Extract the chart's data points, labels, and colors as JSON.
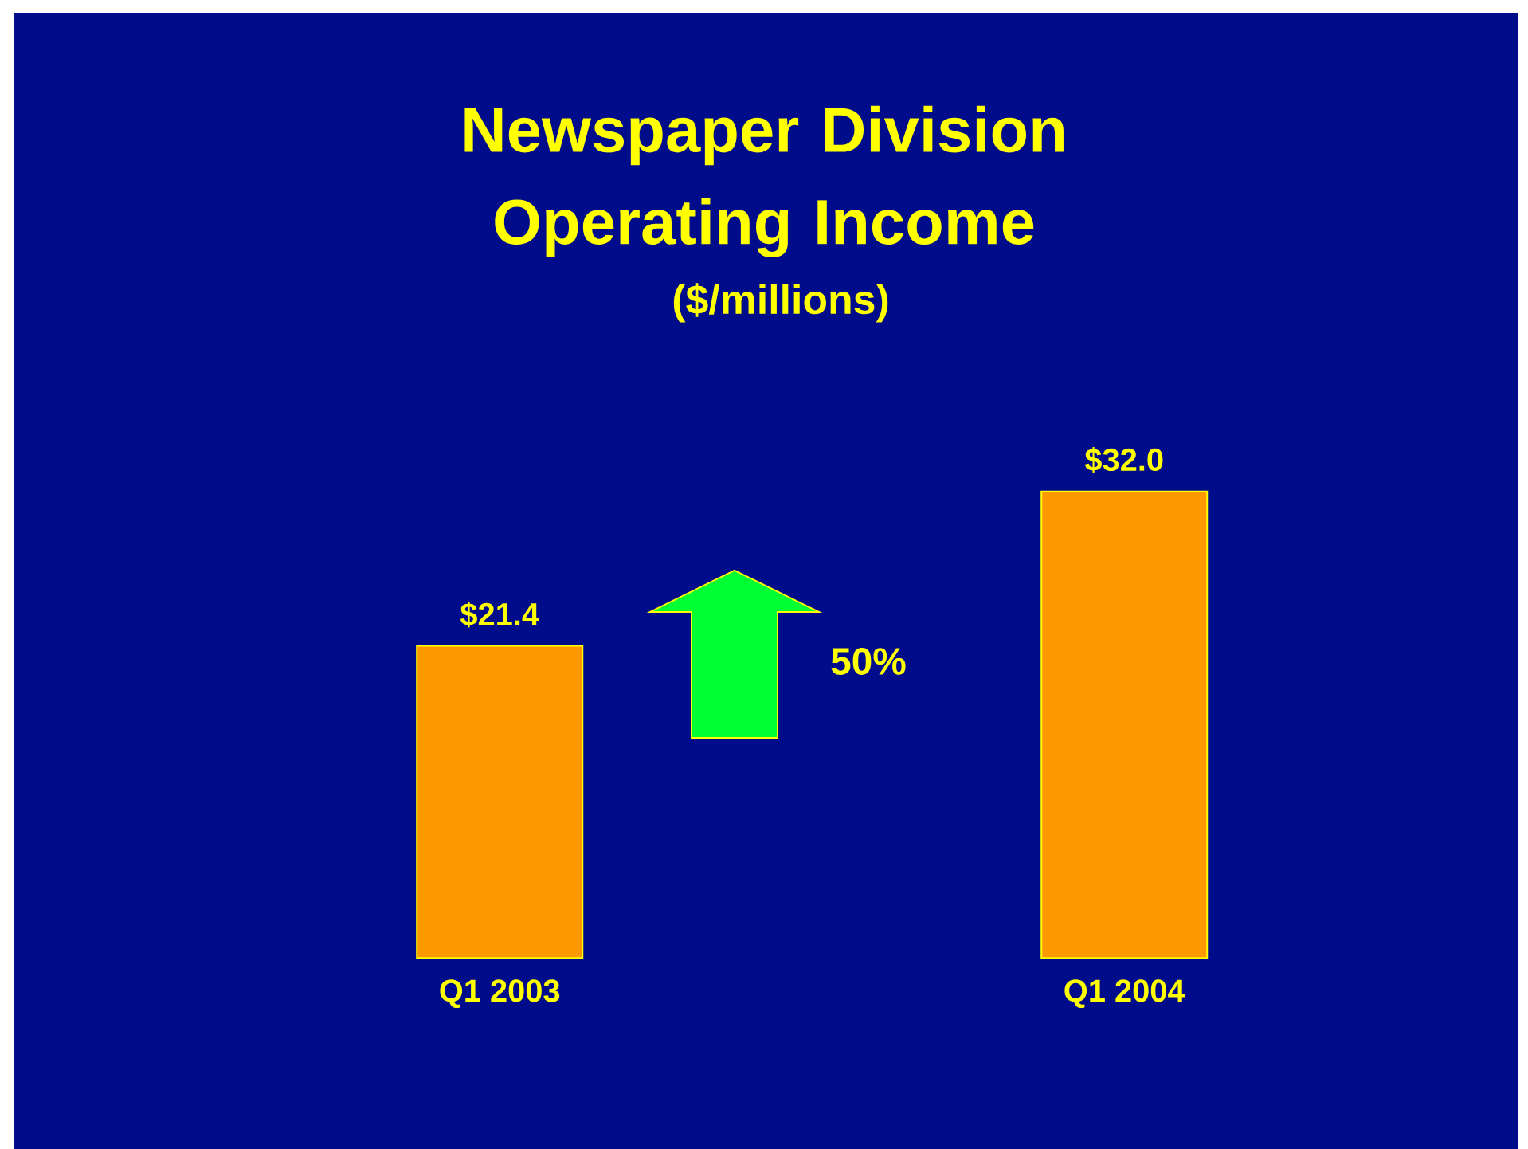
{
  "chart_data": {
    "type": "bar",
    "title": "Newspaper Division Operating Income",
    "subtitle": "($/millions)",
    "categories": [
      "Q1 2003",
      "Q1 2004"
    ],
    "values": [
      21.4,
      32.0
    ],
    "value_labels": [
      "$21.4",
      "$32.0"
    ],
    "color": "#ff9900",
    "annotations": [
      "50%"
    ]
  }
}
